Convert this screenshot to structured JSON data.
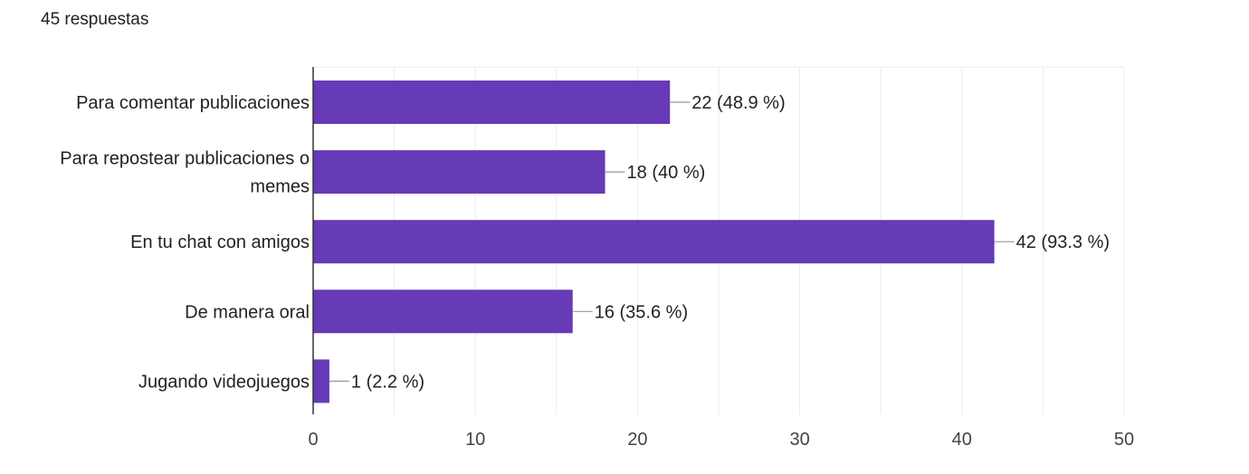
{
  "header": {
    "response_count": "45 respuestas"
  },
  "colors": {
    "bar": "#673ab7",
    "grid": "#ebebeb",
    "axis": "#333333",
    "leader": "#999999"
  },
  "chart_data": {
    "type": "bar",
    "orientation": "horizontal",
    "categories": [
      [
        "Para comentar publicaciones"
      ],
      [
        "Para repostear publicaciones o",
        "memes"
      ],
      [
        "En tu chat con amigos"
      ],
      [
        "De manera oral"
      ],
      [
        "Jugando videojuegos"
      ]
    ],
    "values": [
      22,
      18,
      42,
      16,
      1
    ],
    "data_labels": [
      "22 (48.9 %)",
      "18 (40 %)",
      "42 (93.3 %)",
      "16 (35.6 %)",
      "1 (2.2 %)"
    ],
    "xlim": [
      0,
      50
    ],
    "x_ticks": [
      0,
      10,
      20,
      30,
      40,
      50
    ],
    "grid": true,
    "legend": "none"
  }
}
